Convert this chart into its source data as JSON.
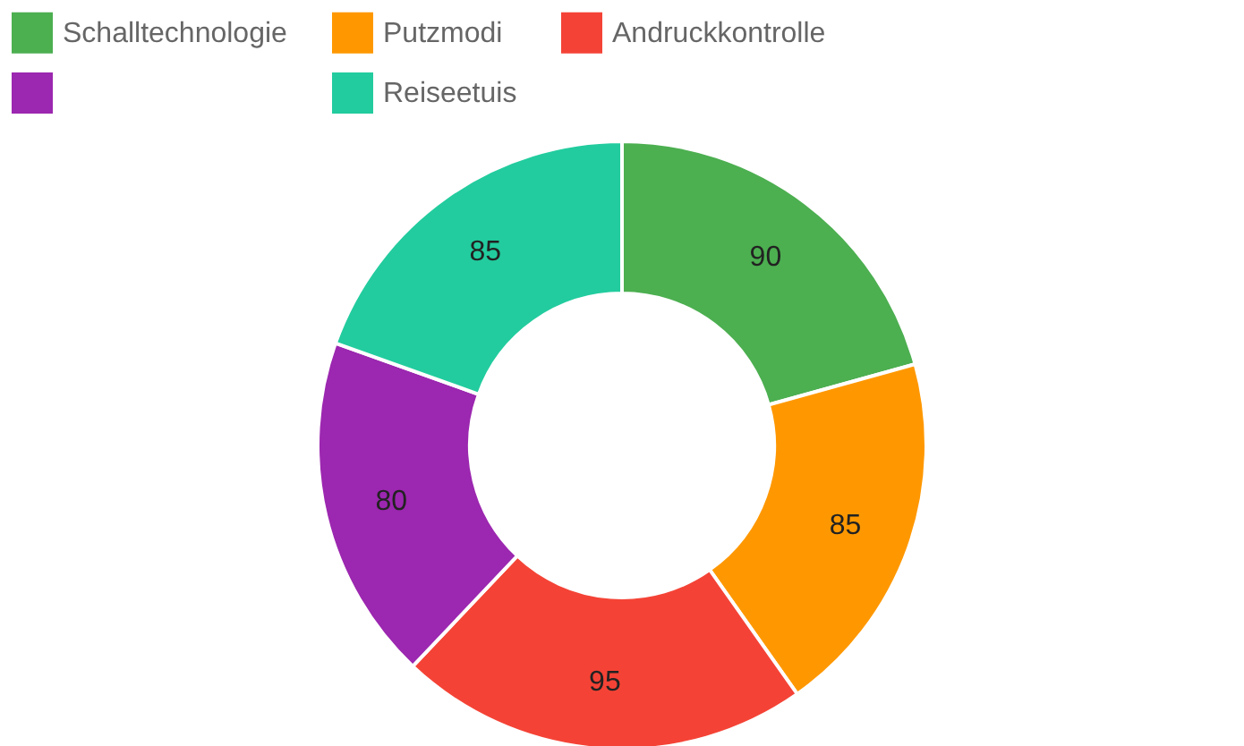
{
  "chart_data": {
    "type": "donut",
    "categories": [
      "Schalltechnologie",
      "Putzmodi",
      "Andruckkontrolle",
      null,
      "Reiseetuis"
    ],
    "values": [
      90,
      85,
      95,
      80,
      85
    ],
    "colors": [
      "#4caf50",
      "#ff9800",
      "#f44336",
      "#9c27b0",
      "#22cc9e"
    ],
    "data_labels": true,
    "legend": "top"
  }
}
